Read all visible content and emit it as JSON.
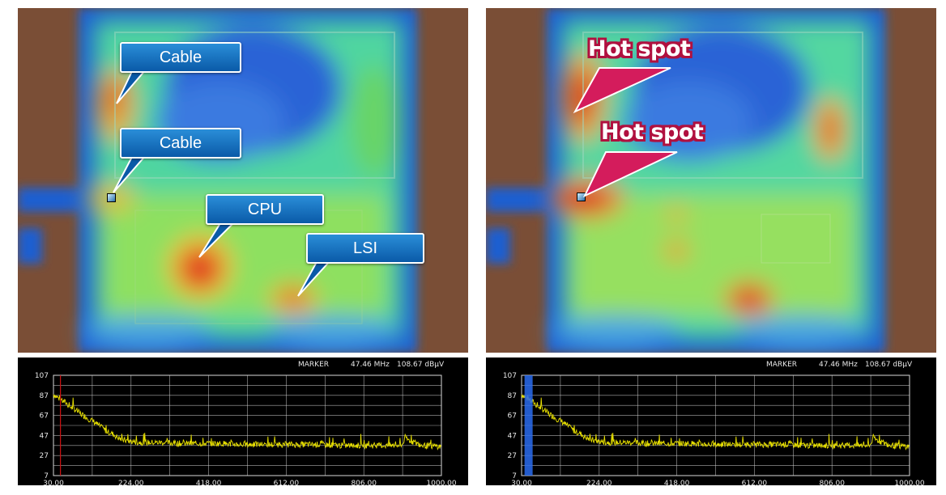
{
  "panels": [
    {
      "id": "left",
      "callouts": [
        {
          "text": "Cable"
        },
        {
          "text": "Cable"
        },
        {
          "text": "CPU"
        },
        {
          "text": "LSI"
        }
      ]
    },
    {
      "id": "right",
      "callouts": [
        {
          "text": "Hot spot"
        },
        {
          "text": "Hot spot"
        }
      ]
    }
  ],
  "spectrum": {
    "marker_label": "MARKER",
    "marker_freq": "47.46 MHz",
    "marker_level": "108.67 dBµV",
    "y_ticks": [
      "107",
      "87",
      "67",
      "47",
      "27",
      "7"
    ],
    "x_ticks": [
      "30.00",
      "224.00",
      "418.00",
      "612.00",
      "806.00",
      "1000.00"
    ]
  },
  "chart_data": {
    "type": "line",
    "title": "",
    "xlabel": "",
    "ylabel": "",
    "xlim": [
      30,
      1000
    ],
    "ylim": [
      7,
      107
    ],
    "marker": {
      "x": 47.46,
      "y": 108.67
    },
    "series": [
      {
        "x": [
          30,
          40,
          50,
          60,
          70,
          80,
          90,
          100,
          110,
          120,
          130,
          140,
          150,
          160,
          170,
          180,
          190,
          200,
          210,
          224,
          250,
          300,
          350,
          400,
          418,
          450,
          500,
          550,
          612,
          650,
          700,
          750,
          806,
          850,
          900,
          910,
          950,
          1000
        ],
        "values": [
          88,
          85,
          82,
          80,
          76,
          74,
          71,
          68,
          66,
          63,
          61,
          58,
          55,
          52,
          50,
          48,
          45,
          43,
          42,
          41,
          40,
          40,
          39,
          39,
          39,
          39,
          38,
          38,
          38,
          38,
          38,
          37,
          37,
          37,
          37,
          44,
          37,
          36
        ]
      }
    ],
    "colors": {
      "trace": "#e8e000",
      "background": "#000000",
      "grid": "#d8d8d8",
      "marker_left": "#d01010",
      "marker_right": "#2a6cf0"
    }
  }
}
